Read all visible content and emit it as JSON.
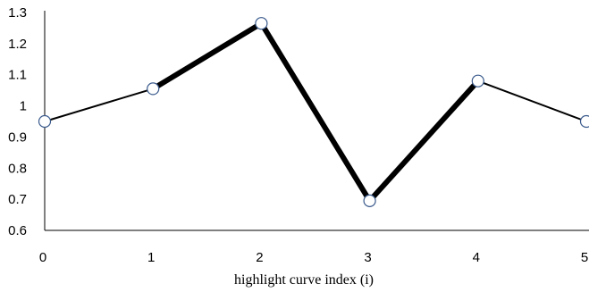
{
  "chart_data": {
    "type": "line",
    "title": "",
    "xlabel": "highlight curve index (i)",
    "ylabel": "",
    "x": [
      0,
      1,
      2,
      3,
      4,
      5
    ],
    "series": [
      {
        "values": [
          0.95,
          1.055,
          1.265,
          0.695,
          1.08,
          0.95
        ]
      }
    ],
    "segment_emphasis": [
      "thin",
      "thick",
      "thick",
      "thick",
      "thin"
    ],
    "xlim": [
      0,
      5
    ],
    "ylim": [
      0.6,
      1.3
    ],
    "x_ticks": [
      "0",
      "1",
      "2",
      "3",
      "4",
      "5"
    ],
    "y_ticks": [
      "0.6",
      "0.7",
      "0.8",
      "0.9",
      "1",
      "1.1",
      "1.2",
      "1.3"
    ],
    "grid": false,
    "legend": "none",
    "colors": {
      "line": "#000000",
      "marker_fill": "#ffffff",
      "marker_stroke": "#3a5a8c",
      "axis": "#000000"
    }
  }
}
